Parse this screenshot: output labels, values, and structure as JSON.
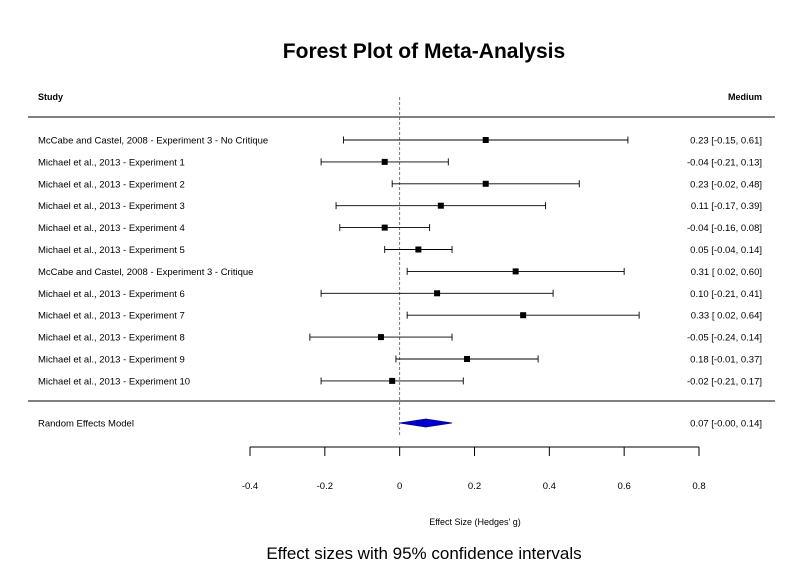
{
  "chart_data": {
    "type": "forest",
    "title": "Forest Plot of Meta-Analysis",
    "subtitle": "Effect sizes with 95% confidence intervals",
    "column_headers": {
      "study": "Study",
      "effect": "Medium"
    },
    "xlabel": "Effect Size (Hedges' g)",
    "xlim": [
      -0.4,
      0.8
    ],
    "xticks": [
      -0.4,
      -0.2,
      0,
      0.2,
      0.4,
      0.6,
      0.8
    ],
    "xtick_labels": [
      "-0.4",
      "-0.2",
      "0",
      "0.2",
      "0.4",
      "0.6",
      "0.8"
    ],
    "reference_line": 0,
    "studies": [
      {
        "label": "McCabe and Castel, 2008 - Experiment 3 - No Critique",
        "estimate": 0.23,
        "lower": -0.15,
        "upper": 0.61,
        "text": "0.23 [-0.15, 0.61]"
      },
      {
        "label": "Michael et al., 2013 - Experiment 1",
        "estimate": -0.04,
        "lower": -0.21,
        "upper": 0.13,
        "text": "-0.04 [-0.21, 0.13]"
      },
      {
        "label": "Michael et al., 2013 - Experiment 2",
        "estimate": 0.23,
        "lower": -0.02,
        "upper": 0.48,
        "text": "0.23 [-0.02, 0.48]"
      },
      {
        "label": "Michael et al., 2013 - Experiment 3",
        "estimate": 0.11,
        "lower": -0.17,
        "upper": 0.39,
        "text": "0.11 [-0.17, 0.39]"
      },
      {
        "label": "Michael et al., 2013 - Experiment 4",
        "estimate": -0.04,
        "lower": -0.16,
        "upper": 0.08,
        "text": "-0.04 [-0.16, 0.08]"
      },
      {
        "label": "Michael et al., 2013 - Experiment 5",
        "estimate": 0.05,
        "lower": -0.04,
        "upper": 0.14,
        "text": "0.05 [-0.04, 0.14]"
      },
      {
        "label": "McCabe and Castel, 2008 - Experiment 3 - Critique",
        "estimate": 0.31,
        "lower": 0.02,
        "upper": 0.6,
        "text": "0.31 [ 0.02, 0.60]"
      },
      {
        "label": "Michael et al., 2013 - Experiment 6",
        "estimate": 0.1,
        "lower": -0.21,
        "upper": 0.41,
        "text": "0.10 [-0.21, 0.41]"
      },
      {
        "label": "Michael et al., 2013 - Experiment 7",
        "estimate": 0.33,
        "lower": 0.02,
        "upper": 0.64,
        "text": "0.33 [ 0.02, 0.64]"
      },
      {
        "label": "Michael et al., 2013 - Experiment 8",
        "estimate": -0.05,
        "lower": -0.24,
        "upper": 0.14,
        "text": "-0.05 [-0.24, 0.14]"
      },
      {
        "label": "Michael et al., 2013 - Experiment 9",
        "estimate": 0.18,
        "lower": -0.01,
        "upper": 0.37,
        "text": "0.18 [-0.01, 0.37]"
      },
      {
        "label": "Michael et al., 2013 - Experiment 10",
        "estimate": -0.02,
        "lower": -0.21,
        "upper": 0.17,
        "text": "-0.02 [-0.21, 0.17]"
      }
    ],
    "summary": {
      "label": "Random Effects Model",
      "estimate": 0.07,
      "lower": 0.0,
      "upper": 0.14,
      "text": "0.07 [-0.00, 0.14]"
    },
    "colors": {
      "summary_fill": "#0000cc",
      "summary_stroke": "#00008b",
      "marker": "#000000"
    }
  }
}
